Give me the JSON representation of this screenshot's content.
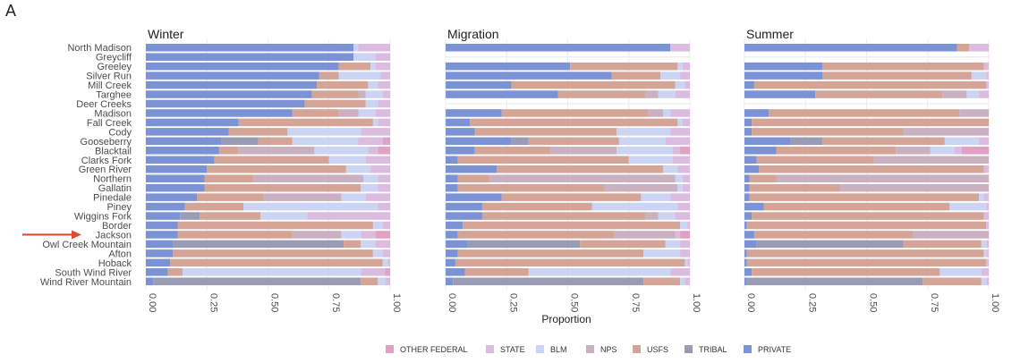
{
  "figure": {
    "panel_label": "A"
  },
  "chart_data": {
    "type": "bar",
    "orientation": "horizontal-stacked",
    "xlabel": "Proportion",
    "xlim": [
      0,
      1
    ],
    "ticks": [
      "0.00",
      "0.25",
      "0.50",
      "0.75",
      "1.00"
    ],
    "tick_values": [
      0,
      0.25,
      0.5,
      0.75,
      1
    ],
    "grid": true,
    "legend_position": "bottom",
    "highlight": {
      "marker": "red-arrow",
      "herd": "Jackson"
    },
    "herds": [
      "North Madison",
      "Greycliff",
      "Greeley",
      "Silver Run",
      "Mill Creek",
      "Targhee",
      "Deer Creeks",
      "Madison",
      "Fall Creek",
      "Cody",
      "Gooseberry",
      "Blacktail",
      "Clarks Fork",
      "Green River",
      "Northern",
      "Gallatin",
      "Pinedale",
      "Piney",
      "Wiggins Fork",
      "Border",
      "Jackson",
      "Owl Creek Mountain",
      "Afton",
      "Hoback",
      "South Wind River",
      "Wind River Mountain"
    ],
    "categories": [
      "PRIVATE",
      "TRIBAL",
      "USFS",
      "NPS",
      "BLM",
      "STATE",
      "OTHER FEDERAL"
    ],
    "legend_order": [
      "OTHER FEDERAL",
      "STATE",
      "BLM",
      "NPS",
      "USFS",
      "TRIBAL",
      "PRIVATE"
    ],
    "colors": {
      "PRIVATE": "#7b93d4",
      "TRIBAL": "#9a9cb5",
      "USFS": "#d4a596",
      "NPS": "#c9b1c1",
      "BLM": "#cbd4f2",
      "STATE": "#dbbce0",
      "OTHER FEDERAL": "#e0a2c2"
    },
    "panels": [
      {
        "title": "Winter",
        "rows": {
          "North Madison": [
            0.85,
            0,
            0,
            0,
            0.02,
            0.13,
            0
          ],
          "Greycliff": [
            0.85,
            0,
            0,
            0,
            0.09,
            0.06,
            0
          ],
          "Greeley": [
            0.79,
            0,
            0.13,
            0,
            0.02,
            0.06,
            0
          ],
          "Silver Run": [
            0.71,
            0,
            0.08,
            0,
            0.17,
            0.04,
            0
          ],
          "Mill Creek": [
            0.7,
            0,
            0.21,
            0,
            0.04,
            0.05,
            0
          ],
          "Targhee": [
            0.68,
            0,
            0.19,
            0.03,
            0.07,
            0.03,
            0
          ],
          "Deer Creeks": [
            0.65,
            0,
            0.25,
            0,
            0.05,
            0.05,
            0
          ],
          "Madison": [
            0.6,
            0,
            0.19,
            0.08,
            0.07,
            0.06,
            0
          ],
          "Fall Creek": [
            0.38,
            0,
            0.55,
            0,
            0.02,
            0.05,
            0
          ],
          "Cody": [
            0.34,
            0,
            0.24,
            0,
            0.3,
            0.12,
            0
          ],
          "Gooseberry": [
            0.31,
            0.15,
            0.14,
            0,
            0.27,
            0.1,
            0.03
          ],
          "Blacktail": [
            0.3,
            0,
            0.08,
            0.31,
            0.22,
            0.04,
            0.05
          ],
          "Clarks Fork": [
            0.28,
            0,
            0.47,
            0,
            0.15,
            0.1,
            0
          ],
          "Green River": [
            0.25,
            0,
            0.57,
            0,
            0.1,
            0.08,
            0
          ],
          "Northern": [
            0.24,
            0,
            0.2,
            0.45,
            0.06,
            0.05,
            0
          ],
          "Gallatin": [
            0.24,
            0,
            0.64,
            0,
            0.07,
            0.05,
            0
          ],
          "Pinedale": [
            0.21,
            0,
            0.27,
            0.32,
            0.1,
            0.1,
            0
          ],
          "Piney": [
            0.16,
            0,
            0.24,
            0,
            0.55,
            0.05,
            0
          ],
          "Wiggins Fork": [
            0.14,
            0.08,
            0.25,
            0,
            0.19,
            0.34,
            0
          ],
          "Border": [
            0.13,
            0,
            0.8,
            0,
            0.04,
            0.03,
            0
          ],
          "Jackson": [
            0.13,
            0,
            0.47,
            0.2,
            0.08,
            0.06,
            0.06
          ],
          "Owl Creek Mountain": [
            0.11,
            0.7,
            0.07,
            0,
            0.06,
            0.06,
            0
          ],
          "Afton": [
            0.11,
            0,
            0.82,
            0,
            0.04,
            0.03,
            0
          ],
          "Hoback": [
            0.1,
            0,
            0.87,
            0,
            0.02,
            0.01,
            0
          ],
          "South Wind River": [
            0.09,
            0,
            0.06,
            0,
            0.73,
            0.1,
            0.02
          ],
          "Wind River Mountain": [
            0.03,
            0.85,
            0.07,
            0,
            0.03,
            0.02,
            0
          ]
        }
      },
      {
        "title": "Migration",
        "rows": {
          "North Madison": [
            0.92,
            0,
            0,
            0,
            0,
            0.08,
            0
          ],
          "Greycliff": [
            0,
            0,
            0,
            0,
            0,
            0,
            0
          ],
          "Greeley": [
            0.51,
            0,
            0.44,
            0,
            0.02,
            0.03,
            0
          ],
          "Silver Run": [
            0.68,
            0,
            0.2,
            0,
            0.08,
            0.04,
            0
          ],
          "Mill Creek": [
            0.27,
            0,
            0.67,
            0,
            0.04,
            0.02,
            0
          ],
          "Targhee": [
            0.46,
            0,
            0.36,
            0.05,
            0.07,
            0.06,
            0
          ],
          "Deer Creeks": [
            0,
            0,
            0,
            0,
            0,
            0,
            0
          ],
          "Madison": [
            0.23,
            0,
            0.6,
            0.06,
            0.03,
            0.08,
            0
          ],
          "Fall Creek": [
            0.1,
            0,
            0.85,
            0,
            0.02,
            0.03,
            0
          ],
          "Cody": [
            0.12,
            0,
            0.58,
            0,
            0.22,
            0.08,
            0
          ],
          "Gooseberry": [
            0.27,
            0.07,
            0.37,
            0,
            0.19,
            0.1,
            0
          ],
          "Blacktail": [
            0.12,
            0,
            0.31,
            0.27,
            0.23,
            0.03,
            0.04
          ],
          "Clarks Fork": [
            0.05,
            0,
            0.7,
            0,
            0.18,
            0.07,
            0
          ],
          "Green River": [
            0.21,
            0,
            0.68,
            0,
            0.06,
            0.05,
            0
          ],
          "Northern": [
            0.05,
            0,
            0.13,
            0.76,
            0.03,
            0.03,
            0
          ],
          "Gallatin": [
            0.05,
            0,
            0.6,
            0.3,
            0.02,
            0.03,
            0
          ],
          "Pinedale": [
            0.23,
            0,
            0.57,
            0,
            0.12,
            0.08,
            0
          ],
          "Piney": [
            0.15,
            0,
            0.45,
            0,
            0.35,
            0.05,
            0
          ],
          "Wiggins Fork": [
            0.15,
            0,
            0.67,
            0.05,
            0.07,
            0.06,
            0
          ],
          "Border": [
            0.07,
            0,
            0.89,
            0,
            0.03,
            0.01,
            0
          ],
          "Jackson": [
            0.05,
            0,
            0.64,
            0.25,
            0,
            0.02,
            0.04
          ],
          "Owl Creek Mountain": [
            0.09,
            0.46,
            0.35,
            0,
            0.06,
            0.04,
            0
          ],
          "Afton": [
            0.05,
            0,
            0.76,
            0,
            0.15,
            0.04,
            0
          ],
          "Hoback": [
            0.04,
            0,
            0.94,
            0,
            0.01,
            0.01,
            0
          ],
          "South Wind River": [
            0.08,
            0,
            0.26,
            0,
            0.58,
            0.08,
            0
          ],
          "Wind River Mountain": [
            0.03,
            0.78,
            0.15,
            0,
            0.02,
            0.02,
            0
          ]
        }
      },
      {
        "title": "Summer",
        "rows": {
          "North Madison": [
            0.87,
            0,
            0.05,
            0,
            0,
            0.08,
            0
          ],
          "Greycliff": [
            0,
            0,
            0,
            0,
            0,
            0,
            0
          ],
          "Greeley": [
            0.32,
            0,
            0.66,
            0,
            0,
            0.02,
            0
          ],
          "Silver Run": [
            0.32,
            0,
            0.61,
            0,
            0.06,
            0.01,
            0
          ],
          "Mill Creek": [
            0.04,
            0,
            0.95,
            0,
            0,
            0.01,
            0
          ],
          "Targhee": [
            0.29,
            0,
            0.52,
            0.1,
            0.05,
            0.04,
            0
          ],
          "Deer Creeks": [
            0,
            0,
            0,
            0,
            0,
            0,
            0
          ],
          "Madison": [
            0.1,
            0,
            0.78,
            0.12,
            0,
            0,
            0
          ],
          "Fall Creek": [
            0.03,
            0,
            0.97,
            0,
            0,
            0,
            0
          ],
          "Cody": [
            0.03,
            0,
            0.62,
            0.35,
            0,
            0,
            0
          ],
          "Gooseberry": [
            0.19,
            0.13,
            0.5,
            0,
            0.14,
            0.04,
            0
          ],
          "Blacktail": [
            0.13,
            0,
            0.49,
            0.14,
            0.1,
            0.03,
            0.11
          ],
          "Clarks Fork": [
            0.05,
            0,
            0.48,
            0.47,
            0,
            0,
            0
          ],
          "Green River": [
            0.06,
            0,
            0.92,
            0,
            0,
            0.02,
            0
          ],
          "Northern": [
            0.02,
            0,
            0.11,
            0.87,
            0,
            0,
            0
          ],
          "Gallatin": [
            0.02,
            0,
            0.37,
            0.61,
            0,
            0,
            0
          ],
          "Pinedale": [
            0.02,
            0,
            0.94,
            0,
            0.02,
            0.02,
            0
          ],
          "Piney": [
            0.08,
            0,
            0.76,
            0,
            0.15,
            0.01,
            0
          ],
          "Wiggins Fork": [
            0.03,
            0,
            0.95,
            0,
            0,
            0.02,
            0
          ],
          "Border": [
            0.01,
            0,
            0.98,
            0,
            0,
            0.01,
            0
          ],
          "Jackson": [
            0.04,
            0,
            0.65,
            0.31,
            0,
            0,
            0
          ],
          "Owl Creek Mountain": [
            0.05,
            0.6,
            0.32,
            0,
            0.02,
            0.01,
            0
          ],
          "Afton": [
            0.01,
            0,
            0.97,
            0,
            0.01,
            0.01,
            0
          ],
          "Hoback": [
            0.01,
            0,
            0.98,
            0,
            0,
            0.01,
            0
          ],
          "South Wind River": [
            0.03,
            0,
            0.77,
            0,
            0.17,
            0.03,
            0
          ],
          "Wind River Mountain": [
            0.01,
            0.72,
            0.24,
            0,
            0.02,
            0.01,
            0
          ]
        }
      }
    ]
  }
}
